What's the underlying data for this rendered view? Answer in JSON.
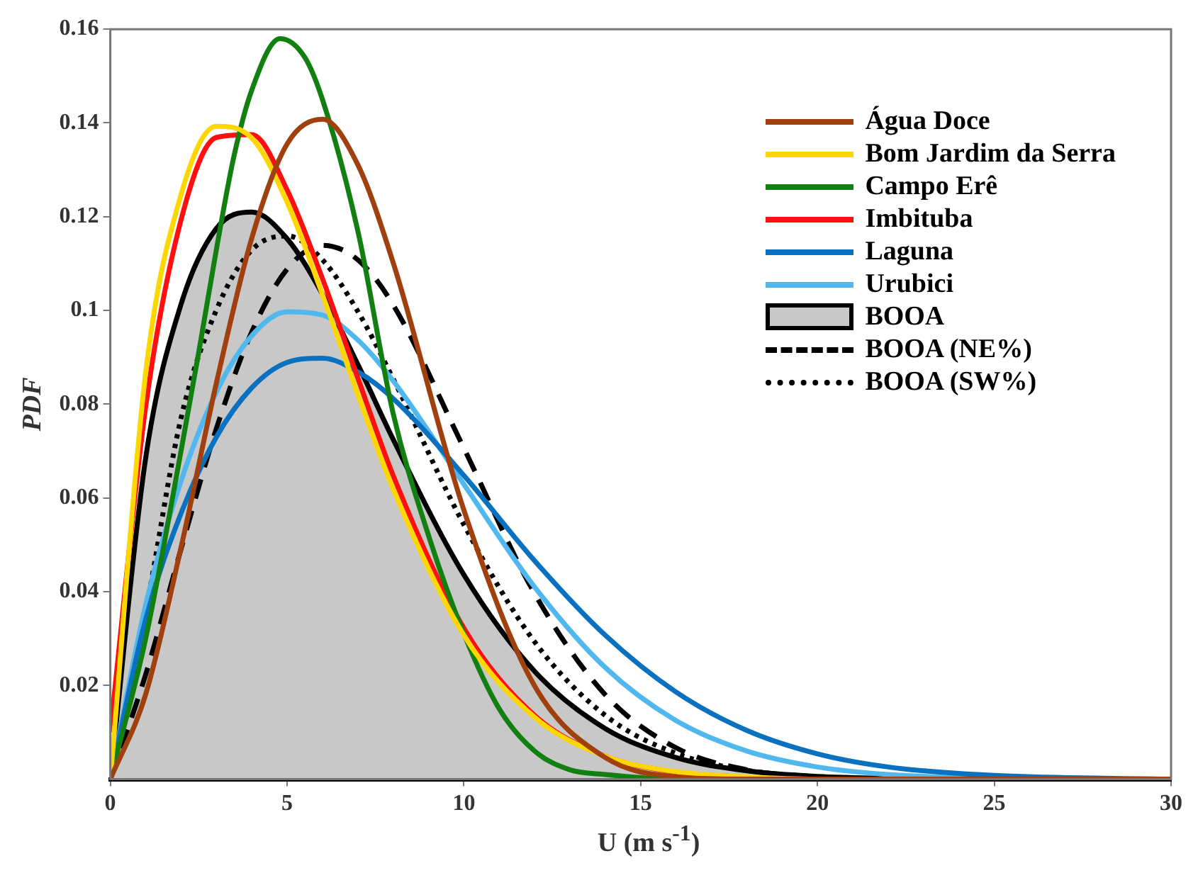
{
  "chart_data": {
    "type": "line",
    "xlabel": "U (m s$^{-1}$)",
    "ylabel": "PDF",
    "legend": "top right",
    "x": [
      0,
      1,
      2,
      3,
      4,
      5,
      6,
      7,
      8,
      10,
      12,
      14,
      16,
      18,
      20,
      22,
      25,
      30
    ],
    "xlim": [
      0,
      30
    ],
    "xticks": [
      0,
      5,
      10,
      15,
      20,
      25,
      30
    ],
    "ylim": [
      0,
      0.16
    ],
    "yticks": [
      0.02,
      0.04,
      0.06,
      0.08,
      0.1,
      0.12,
      0.14,
      0.16
    ],
    "series": [
      {
        "name": "Água Doce",
        "color": "#a0400f",
        "values": [
          0,
          0.0181,
          0.0494,
          0.0845,
          0.1154,
          0.1355,
          0.1408,
          0.1311,
          0.1102,
          0.0574,
          0.0199,
          0.0046,
          0.0005,
          0,
          0,
          0,
          0,
          0
        ]
      },
      {
        "name": "Bom Jardim da Serra",
        "color": "#ffd700",
        "values": [
          0,
          0.0867,
          0.1247,
          0.1393,
          0.1368,
          0.1231,
          0.1034,
          0.0821,
          0.0619,
          0.0307,
          0.0132,
          0.0049,
          0.0016,
          0.0005,
          0,
          0,
          null,
          null
        ]
      },
      {
        "name": "Campo Erê",
        "color": "#118011",
        "x": [
          0,
          1,
          2,
          2.5,
          3,
          3.5,
          4,
          4.8,
          5.5,
          6,
          7,
          8,
          9,
          10,
          11,
          12,
          13,
          14,
          16,
          20
        ],
        "values": [
          0,
          0.03,
          0.07,
          0.091,
          0.113,
          0.133,
          0.147,
          0.158,
          0.154,
          0.145,
          0.117,
          0.078,
          0.052,
          0.031,
          0.015,
          0.006,
          0.002,
          0.001,
          0,
          0
        ]
      },
      {
        "name": "Imbituba",
        "color": "#ff1010",
        "values": [
          0.01,
          0.0794,
          0.1193,
          0.1369,
          0.1375,
          0.1257,
          0.1068,
          0.0856,
          0.0648,
          0.0322,
          0.0136,
          0.0049,
          0.0015,
          0.0004,
          null,
          null,
          null,
          null
        ]
      },
      {
        "name": "Laguna",
        "color": "#0a70c0",
        "values": [
          0,
          0.0341,
          0.0567,
          0.073,
          0.0835,
          0.0889,
          0.0898,
          0.0869,
          0.0812,
          0.0648,
          0.0466,
          0.0307,
          0.0186,
          0.0104,
          0.0054,
          0.0026,
          0.0008,
          0
        ]
      },
      {
        "name": "Urubici",
        "color": "#50b8ee",
        "values": [
          0,
          0.0372,
          0.0636,
          0.0826,
          0.0946,
          0.0997,
          0.099,
          0.0937,
          0.085,
          0.0629,
          0.041,
          0.0238,
          0.0125,
          0.006,
          0.0026,
          0.001,
          0.0002,
          0
        ]
      },
      {
        "name": "BOOA",
        "type": "area",
        "color": "#c8c8c8",
        "values": [
          0,
          0.0685,
          0.1013,
          0.1175,
          0.121,
          0.1153,
          0.1035,
          0.0885,
          0.0725,
          0.0436,
          0.023,
          0.0108,
          0.0046,
          0.0018,
          0.0006,
          0.0002,
          0,
          0
        ]
      },
      {
        "name": "BOOA (NE%)",
        "color": "#000000",
        "line_style": "dashed",
        "values": [
          0,
          0.0223,
          0.0491,
          0.0748,
          0.0954,
          0.1088,
          0.1139,
          0.1108,
          0.1012,
          0.0706,
          0.0396,
          0.018,
          0.0067,
          0.002,
          0.0005,
          0.0001,
          0,
          null
        ]
      },
      {
        "name": "BOOA (SW%)",
        "color": "#000000",
        "line_style": "dotted",
        "values": [
          0,
          0.0357,
          0.077,
          0.1001,
          0.1129,
          0.1159,
          0.1108,
          0.0998,
          0.0854,
          0.0543,
          0.0293,
          0.0136,
          0.0055,
          0.0019,
          0.0005,
          0.0001,
          null,
          null
        ]
      }
    ]
  }
}
